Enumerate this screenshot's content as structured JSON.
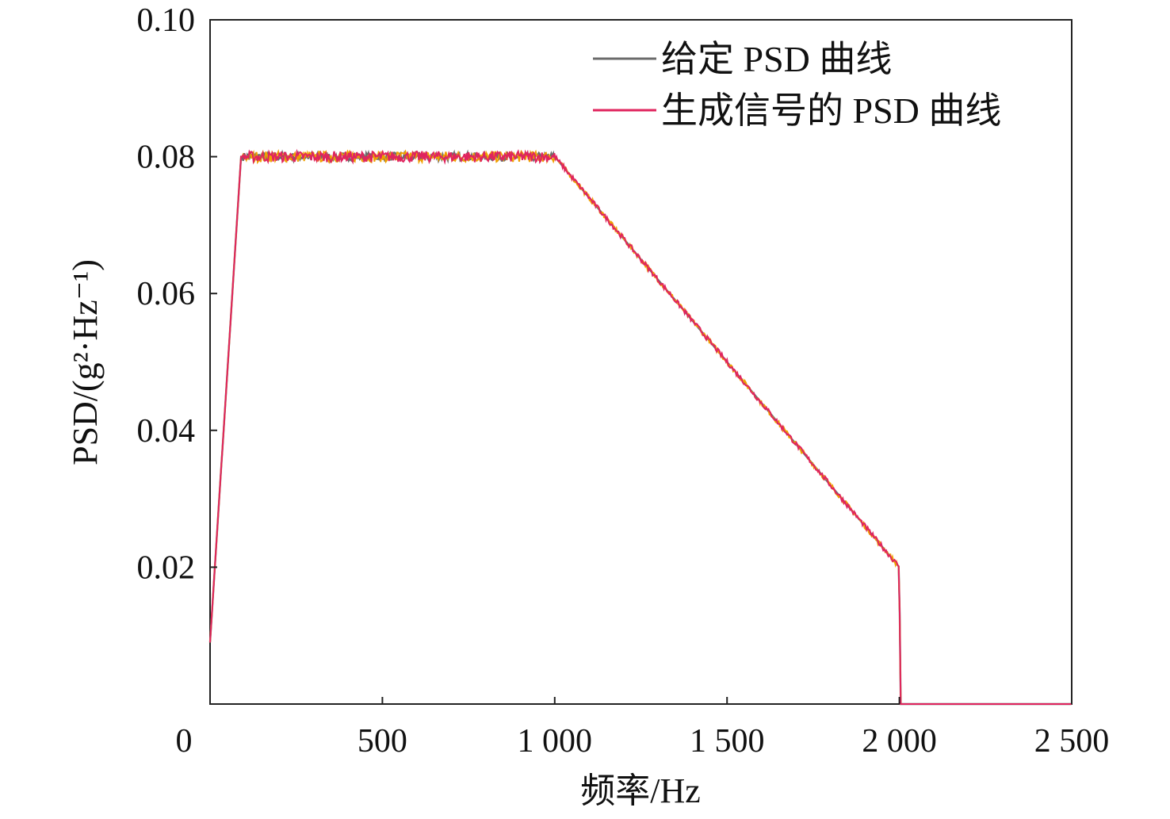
{
  "chart_data": {
    "type": "line",
    "xlabel": "频率/Hz",
    "ylabel": "PSD/(g²·Hz⁻¹)",
    "xlim": [
      0,
      2500
    ],
    "ylim": [
      0,
      0.1
    ],
    "x_ticks": [
      0,
      500,
      1000,
      1500,
      2000,
      2500
    ],
    "x_tick_labels": [
      "0",
      "500",
      "1 000",
      "1 500",
      "2 000",
      "2 500"
    ],
    "y_ticks": [
      0.02,
      0.04,
      0.06,
      0.08,
      0.1
    ],
    "y_tick_labels": [
      "0.02",
      "0.04",
      "0.06",
      "0.08",
      "0.10"
    ],
    "grid": false,
    "legend_position": "top-right",
    "series": [
      {
        "name": "给定 PSD 曲线",
        "color": "#6b6b6b",
        "x": [
          0,
          90,
          1000,
          2000,
          2003,
          2010,
          2500
        ],
        "y": [
          0.009,
          0.08,
          0.08,
          0.02,
          0.0,
          0.0,
          0.0
        ]
      },
      {
        "name": "生成信号的 PSD 曲线",
        "color": "#e0245e",
        "accent_color": "#f0a000",
        "x": [
          0,
          90,
          1000,
          2000,
          2003,
          2010,
          2500
        ],
        "y": [
          0.009,
          0.08,
          0.08,
          0.02,
          0.0,
          0.0,
          0.0
        ],
        "noise_amplitude": 0.0008
      }
    ]
  }
}
